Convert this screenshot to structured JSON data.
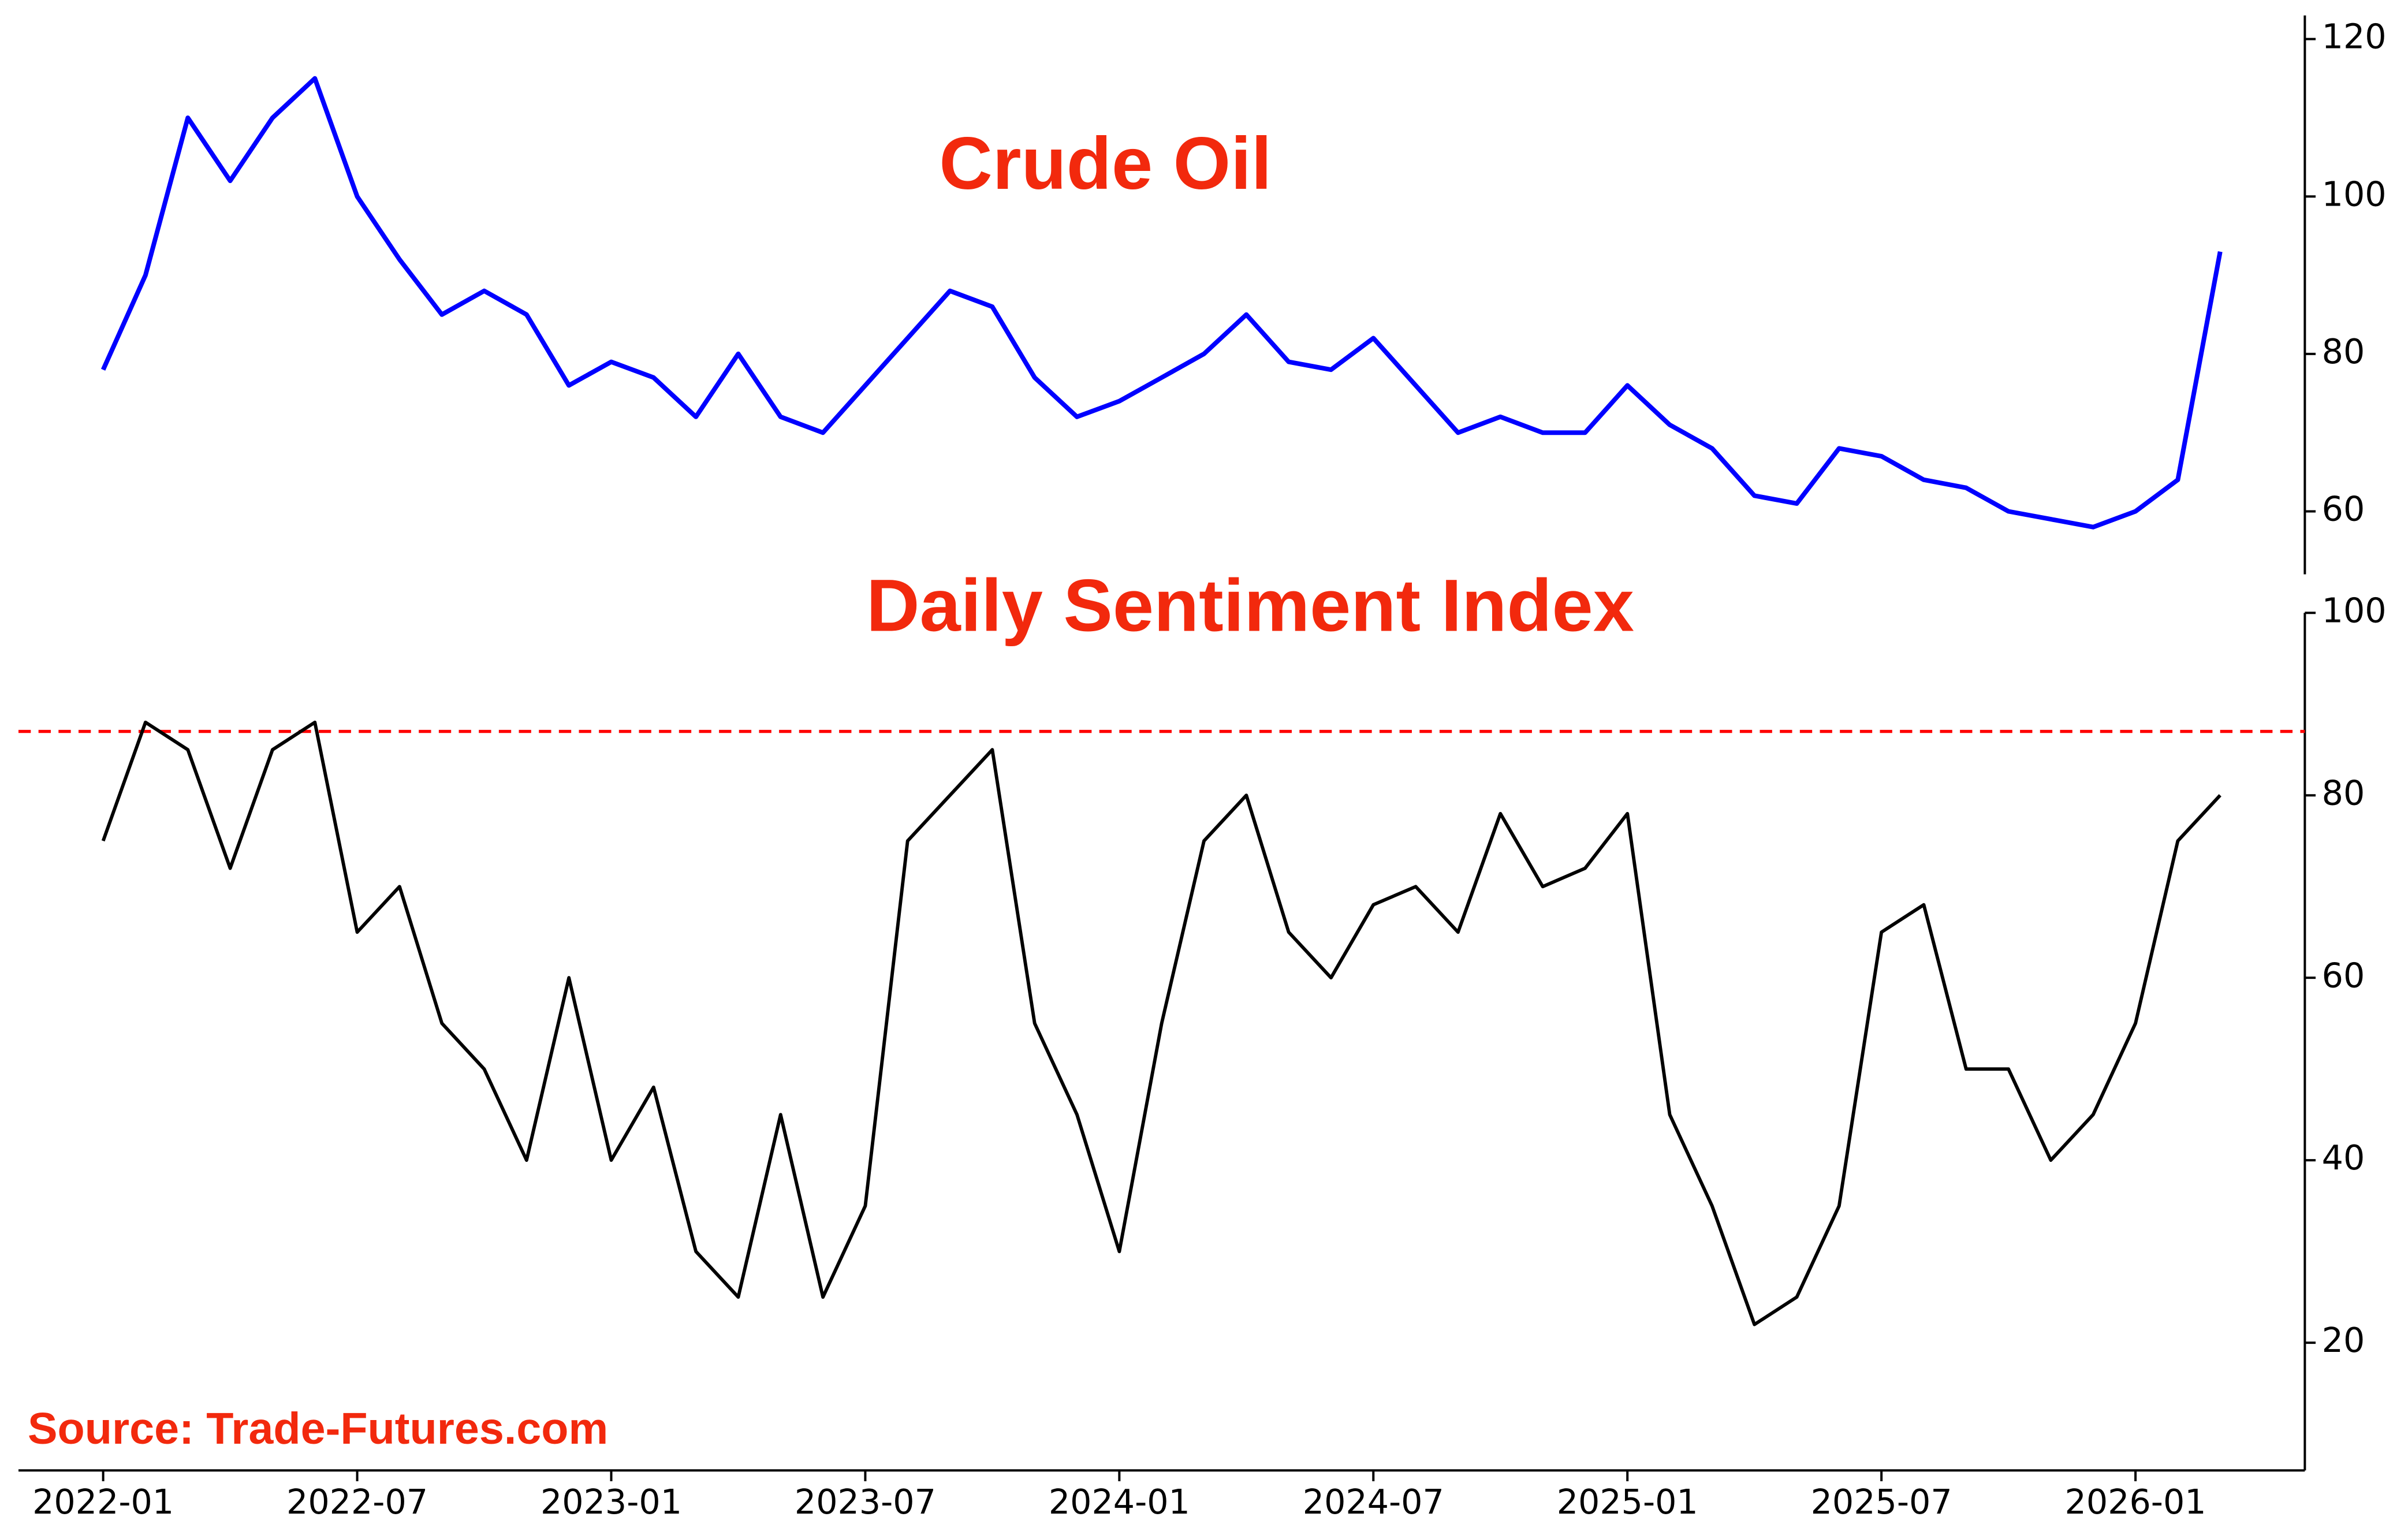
{
  "chart_data": [
    {
      "type": "line",
      "title": "Crude Oil",
      "x": [
        "2022-01",
        "2022-02",
        "2022-03",
        "2022-04",
        "2022-05",
        "2022-06",
        "2022-07",
        "2022-08",
        "2022-09",
        "2022-10",
        "2022-11",
        "2022-12",
        "2023-01",
        "2023-02",
        "2023-03",
        "2023-04",
        "2023-05",
        "2023-06",
        "2023-07",
        "2023-08",
        "2023-09",
        "2023-10",
        "2023-11",
        "2023-12",
        "2024-01",
        "2024-02",
        "2024-03",
        "2024-04",
        "2024-05",
        "2024-06",
        "2024-07",
        "2024-08",
        "2024-09",
        "2024-10",
        "2024-11",
        "2024-12",
        "2025-01",
        "2025-02",
        "2025-03",
        "2025-04",
        "2025-05",
        "2025-06",
        "2025-07",
        "2025-08",
        "2025-09",
        "2025-10",
        "2025-11",
        "2025-12",
        "2026-01",
        "2026-02",
        "2026-03"
      ],
      "series": [
        {
          "color": "#0000ff",
          "values": [
            78,
            90,
            110,
            102,
            110,
            115,
            100,
            92,
            85,
            88,
            85,
            76,
            79,
            77,
            72,
            80,
            72,
            70,
            76,
            82,
            88,
            86,
            77,
            72,
            74,
            77,
            80,
            85,
            79,
            78,
            82,
            76,
            70,
            72,
            70,
            70,
            76,
            71,
            68,
            62,
            61,
            68,
            67,
            64,
            63,
            60,
            59,
            58,
            60,
            64,
            93
          ]
        }
      ],
      "xlim": [
        "2021-11",
        "2026-05"
      ],
      "ylim": [
        52,
        123
      ],
      "yticks": [
        60,
        80,
        100,
        120
      ]
    },
    {
      "type": "line",
      "title": "Daily Sentiment Index",
      "x": [
        "2022-01",
        "2022-02",
        "2022-03",
        "2022-04",
        "2022-05",
        "2022-06",
        "2022-07",
        "2022-08",
        "2022-09",
        "2022-10",
        "2022-11",
        "2022-12",
        "2023-01",
        "2023-02",
        "2023-03",
        "2023-04",
        "2023-05",
        "2023-06",
        "2023-07",
        "2023-08",
        "2023-09",
        "2023-10",
        "2023-11",
        "2023-12",
        "2024-01",
        "2024-02",
        "2024-03",
        "2024-04",
        "2024-05",
        "2024-06",
        "2024-07",
        "2024-08",
        "2024-09",
        "2024-10",
        "2024-11",
        "2024-12",
        "2025-01",
        "2025-02",
        "2025-03",
        "2025-04",
        "2025-05",
        "2025-06",
        "2025-07",
        "2025-08",
        "2025-09",
        "2025-10",
        "2025-11",
        "2025-12",
        "2026-01",
        "2026-02",
        "2026-03"
      ],
      "series": [
        {
          "color": "#000000",
          "values": [
            75,
            88,
            85,
            72,
            85,
            88,
            65,
            70,
            55,
            50,
            40,
            60,
            40,
            48,
            30,
            25,
            45,
            25,
            35,
            75,
            80,
            85,
            55,
            45,
            30,
            55,
            75,
            80,
            65,
            60,
            68,
            70,
            65,
            78,
            70,
            72,
            78,
            45,
            35,
            22,
            25,
            35,
            65,
            68,
            50,
            50,
            40,
            45,
            55,
            75,
            80
          ]
        }
      ],
      "reference_line": {
        "value": 87,
        "color": "#ff0000"
      },
      "xlim": [
        "2021-11",
        "2026-05"
      ],
      "xticks": [
        "2022-01",
        "2022-07",
        "2023-01",
        "2023-07",
        "2024-01",
        "2024-07",
        "2025-01",
        "2025-07",
        "2026-01"
      ],
      "ylim": [
        6,
        100
      ],
      "yticks": [
        20,
        40,
        60,
        80,
        100
      ],
      "annotation": "Source: Trade-Futures.com"
    }
  ]
}
